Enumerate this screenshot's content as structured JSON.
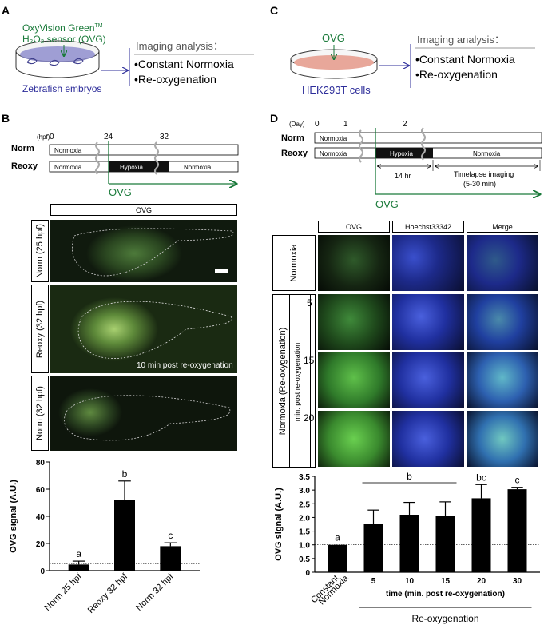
{
  "panelA": {
    "letter": "A",
    "sensor_line1": "OxyVision Green",
    "sensor_tm": "TM",
    "sensor_line2": "H₂O₂ sensor (OVG)",
    "sample": "Zebrafish embryos",
    "analysis_title": "Imaging analysis：",
    "item1": "•Constant Normoxia",
    "item2": "•Re-oxygenation"
  },
  "panelB": {
    "letter": "B",
    "unit": "(hpf)",
    "ticks": [
      "0",
      "24",
      "32"
    ],
    "row1": "Norm",
    "row2": "Reoxy",
    "normoxia": "Normoxia",
    "hypoxia": "Hypoxia",
    "ovg": "OVG",
    "image_header": "OVG",
    "images": [
      {
        "label": "Norm (25 hpf)"
      },
      {
        "label": "Reoxy (32 hpf)",
        "caption": "10 min post re-oxygenation"
      },
      {
        "label": "Norm (32 hpf)"
      }
    ]
  },
  "panelC": {
    "letter": "C",
    "label": "OVG",
    "sample": "HEK293T cells",
    "analysis_title": "Imaging analysis：",
    "item1": "•Constant Normoxia",
    "item2": "•Re-oxygenation"
  },
  "panelD": {
    "letter": "D",
    "unit": "(Day)",
    "ticks": [
      "0",
      "1",
      "2"
    ],
    "row1": "Norm",
    "row2": "Reoxy",
    "normoxia": "Normoxia",
    "hypoxia": "Hypoxia",
    "hr14": "14 hr",
    "timelapse1": "Timelapse imaging",
    "timelapse2": "(5-30 min)",
    "ovg": "OVG",
    "col_headers": [
      "OVG",
      "Hoechst33342",
      "Merge"
    ],
    "row_label_normoxia": "Normoxia",
    "row_label_reoxy": "Normoxia (Re-oxygenation)",
    "row_sub_label": "min. post re-oxygenation",
    "row_times": [
      "5",
      "15",
      "20"
    ]
  },
  "colors": {
    "green": "#1a7a3a",
    "blue": "#2d2d9a",
    "grey": "#9a9a9a"
  },
  "chart_data": [
    {
      "type": "bar",
      "ylabel": "OVG signal (A.U.)",
      "categories": [
        "Norm 25 hpf",
        "Reoxy 32 hpf",
        "Norm 32 hpf"
      ],
      "values": [
        4.5,
        52,
        18
      ],
      "errors": [
        2.5,
        14,
        2.5
      ],
      "letters": [
        "a",
        "b",
        "c"
      ],
      "ylim": [
        0,
        80
      ],
      "yticks": [
        "0",
        "20",
        "40",
        "60",
        "80"
      ],
      "baseline": 5
    },
    {
      "type": "bar",
      "ylabel": "OVG signal (A.U.)",
      "categories": [
        "Constant Normoxia",
        "5",
        "10",
        "15",
        "20",
        "30"
      ],
      "values": [
        1.0,
        1.77,
        2.1,
        2.05,
        2.7,
        3.03
      ],
      "errors": [
        0,
        0.5,
        0.45,
        0.52,
        0.5,
        0.07
      ],
      "letters": [
        "a",
        "",
        "",
        "",
        "bc",
        "c"
      ],
      "group_letter": "b",
      "ylim": [
        0,
        3.5
      ],
      "yticks": [
        "0",
        "0.5",
        "1.0",
        "1.5",
        "2.0",
        "2.5",
        "3.0",
        "3.5"
      ],
      "baseline": 1.0,
      "xlabel": "time (min. post re-oxygenation)",
      "group_label": "Re-oxygenation",
      "constant_label1": "Constant",
      "constant_label2": "Normoxia"
    }
  ]
}
